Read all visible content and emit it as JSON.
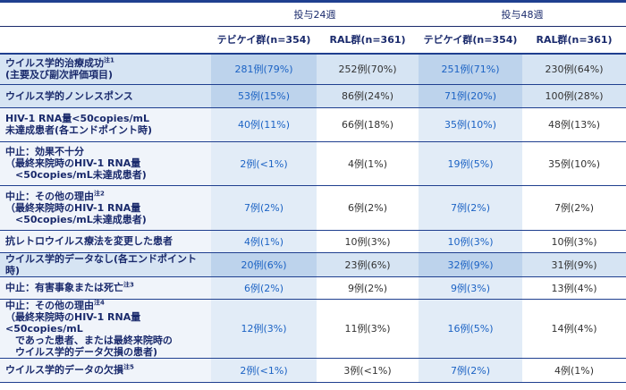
{
  "header": {
    "week24": "投与24週",
    "week48": "投与48週",
    "col_teb": "テビケイ群(n=354)",
    "col_ral": "RAL群(n=361)"
  },
  "rows": [
    {
      "label": "ウイルス学的治療成功",
      "sup": "注1",
      "label2": "(主要及び副次評価項目)",
      "v": [
        "281例(79%)",
        "252例(70%)",
        "251例(71%)",
        "230例(64%)"
      ]
    },
    {
      "label": "ウイルス学的ノンレスポンス",
      "sup": "",
      "label2": "",
      "v": [
        "53例(15%)",
        "86例(24%)",
        "71例(20%)",
        "100例(28%)"
      ]
    },
    {
      "label": "HIV-1 RNA量<50copies/mL",
      "sup": "",
      "label2": "未達成患者(各エンドポイント時)",
      "v": [
        "40例(11%)",
        "66例(18%)",
        "35例(10%)",
        "48例(13%)"
      ]
    },
    {
      "label": "中止：効果不十分",
      "sup": "",
      "label2": "（最終来院時のHIV-1 RNA量\n　<50copies/mL未達成患者)",
      "v": [
        "2例(<1%)",
        "4例(1%)",
        "19例(5%)",
        "35例(10%)"
      ]
    },
    {
      "label": "中止：その他の理由",
      "sup": "注2",
      "label2": "（最終来院時のHIV-1 RNA量\n　<50copies/mL未達成患者)",
      "v": [
        "7例(2%)",
        "6例(2%)",
        "7例(2%)",
        "7例(2%)"
      ]
    },
    {
      "label": "抗レトロウイルス療法を変更した患者",
      "sup": "",
      "label2": "",
      "v": [
        "4例(1%)",
        "10例(3%)",
        "10例(3%)",
        "10例(3%)"
      ]
    },
    {
      "label": "ウイルス学的データなし(各エンドポイント時)",
      "sup": "",
      "label2": "",
      "v": [
        "20例(6%)",
        "23例(6%)",
        "32例(9%)",
        "31例(9%)"
      ]
    },
    {
      "label": "中止：有害事象または死亡",
      "sup": "注3",
      "label2": "",
      "v": [
        "6例(2%)",
        "9例(2%)",
        "9例(3%)",
        "13例(4%)"
      ]
    },
    {
      "label": "中止：その他の理由",
      "sup": "注4",
      "label2": "（最終来院時のHIV-1 RNA量<50copies/mL\n　であった患者、または最終来院時の\n　ウイルス学的データ欠損の患者)",
      "v": [
        "12例(3%)",
        "11例(3%)",
        "16例(5%)",
        "14例(4%)"
      ]
    },
    {
      "label": "ウイルス学的データの欠損",
      "sup": "注5",
      "label2": "",
      "v": [
        "2例(<1%)",
        "3例(<1%)",
        "7例(2%)",
        "4例(1%)"
      ]
    }
  ]
}
